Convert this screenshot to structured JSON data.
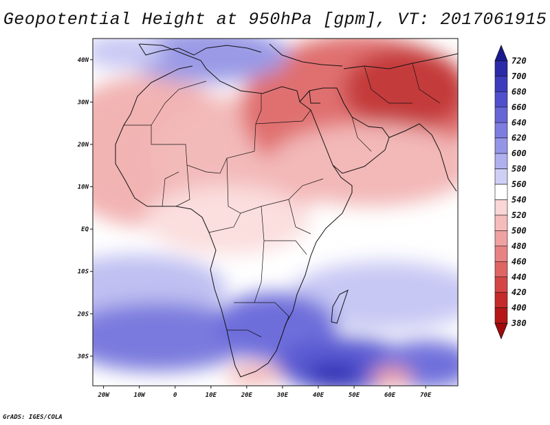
{
  "title": "Geopotential Height at 950hPa [gpm], VT: 2017061915",
  "credit": "GrADS: IGES/COLA",
  "map": {
    "projection": "lat-lon",
    "lon_range": [
      -23,
      79
    ],
    "lat_range": [
      -37,
      45
    ],
    "lon_ticks": [
      {
        "value": -20,
        "label": "20W"
      },
      {
        "value": -10,
        "label": "10W"
      },
      {
        "value": 0,
        "label": "0"
      },
      {
        "value": 10,
        "label": "10E"
      },
      {
        "value": 20,
        "label": "20E"
      },
      {
        "value": 30,
        "label": "30E"
      },
      {
        "value": 40,
        "label": "40E"
      },
      {
        "value": 50,
        "label": "50E"
      },
      {
        "value": 60,
        "label": "60E"
      },
      {
        "value": 70,
        "label": "70E"
      }
    ],
    "lat_ticks": [
      {
        "value": 40,
        "label": "40N"
      },
      {
        "value": 30,
        "label": "30N"
      },
      {
        "value": 20,
        "label": "20N"
      },
      {
        "value": 10,
        "label": "10N"
      },
      {
        "value": 0,
        "label": "EQ"
      },
      {
        "value": -10,
        "label": "10S"
      },
      {
        "value": -20,
        "label": "20S"
      },
      {
        "value": -30,
        "label": "30S"
      }
    ]
  },
  "colorbar": {
    "labels": [
      "720",
      "700",
      "680",
      "660",
      "640",
      "620",
      "600",
      "580",
      "560",
      "540",
      "520",
      "500",
      "480",
      "460",
      "440",
      "420",
      "400",
      "380"
    ],
    "colors": [
      "#1a1a8f",
      "#2b2ba8",
      "#3c3cbd",
      "#5050cc",
      "#6666d6",
      "#7d7ddf",
      "#9595e8",
      "#b0b0ef",
      "#cfcff6",
      "#ffffff",
      "#fbd6d6",
      "#f6bcbc",
      "#f0a1a1",
      "#e88383",
      "#df6464",
      "#d44646",
      "#c62b2b",
      "#b51717",
      "#a00a0a"
    ]
  }
}
